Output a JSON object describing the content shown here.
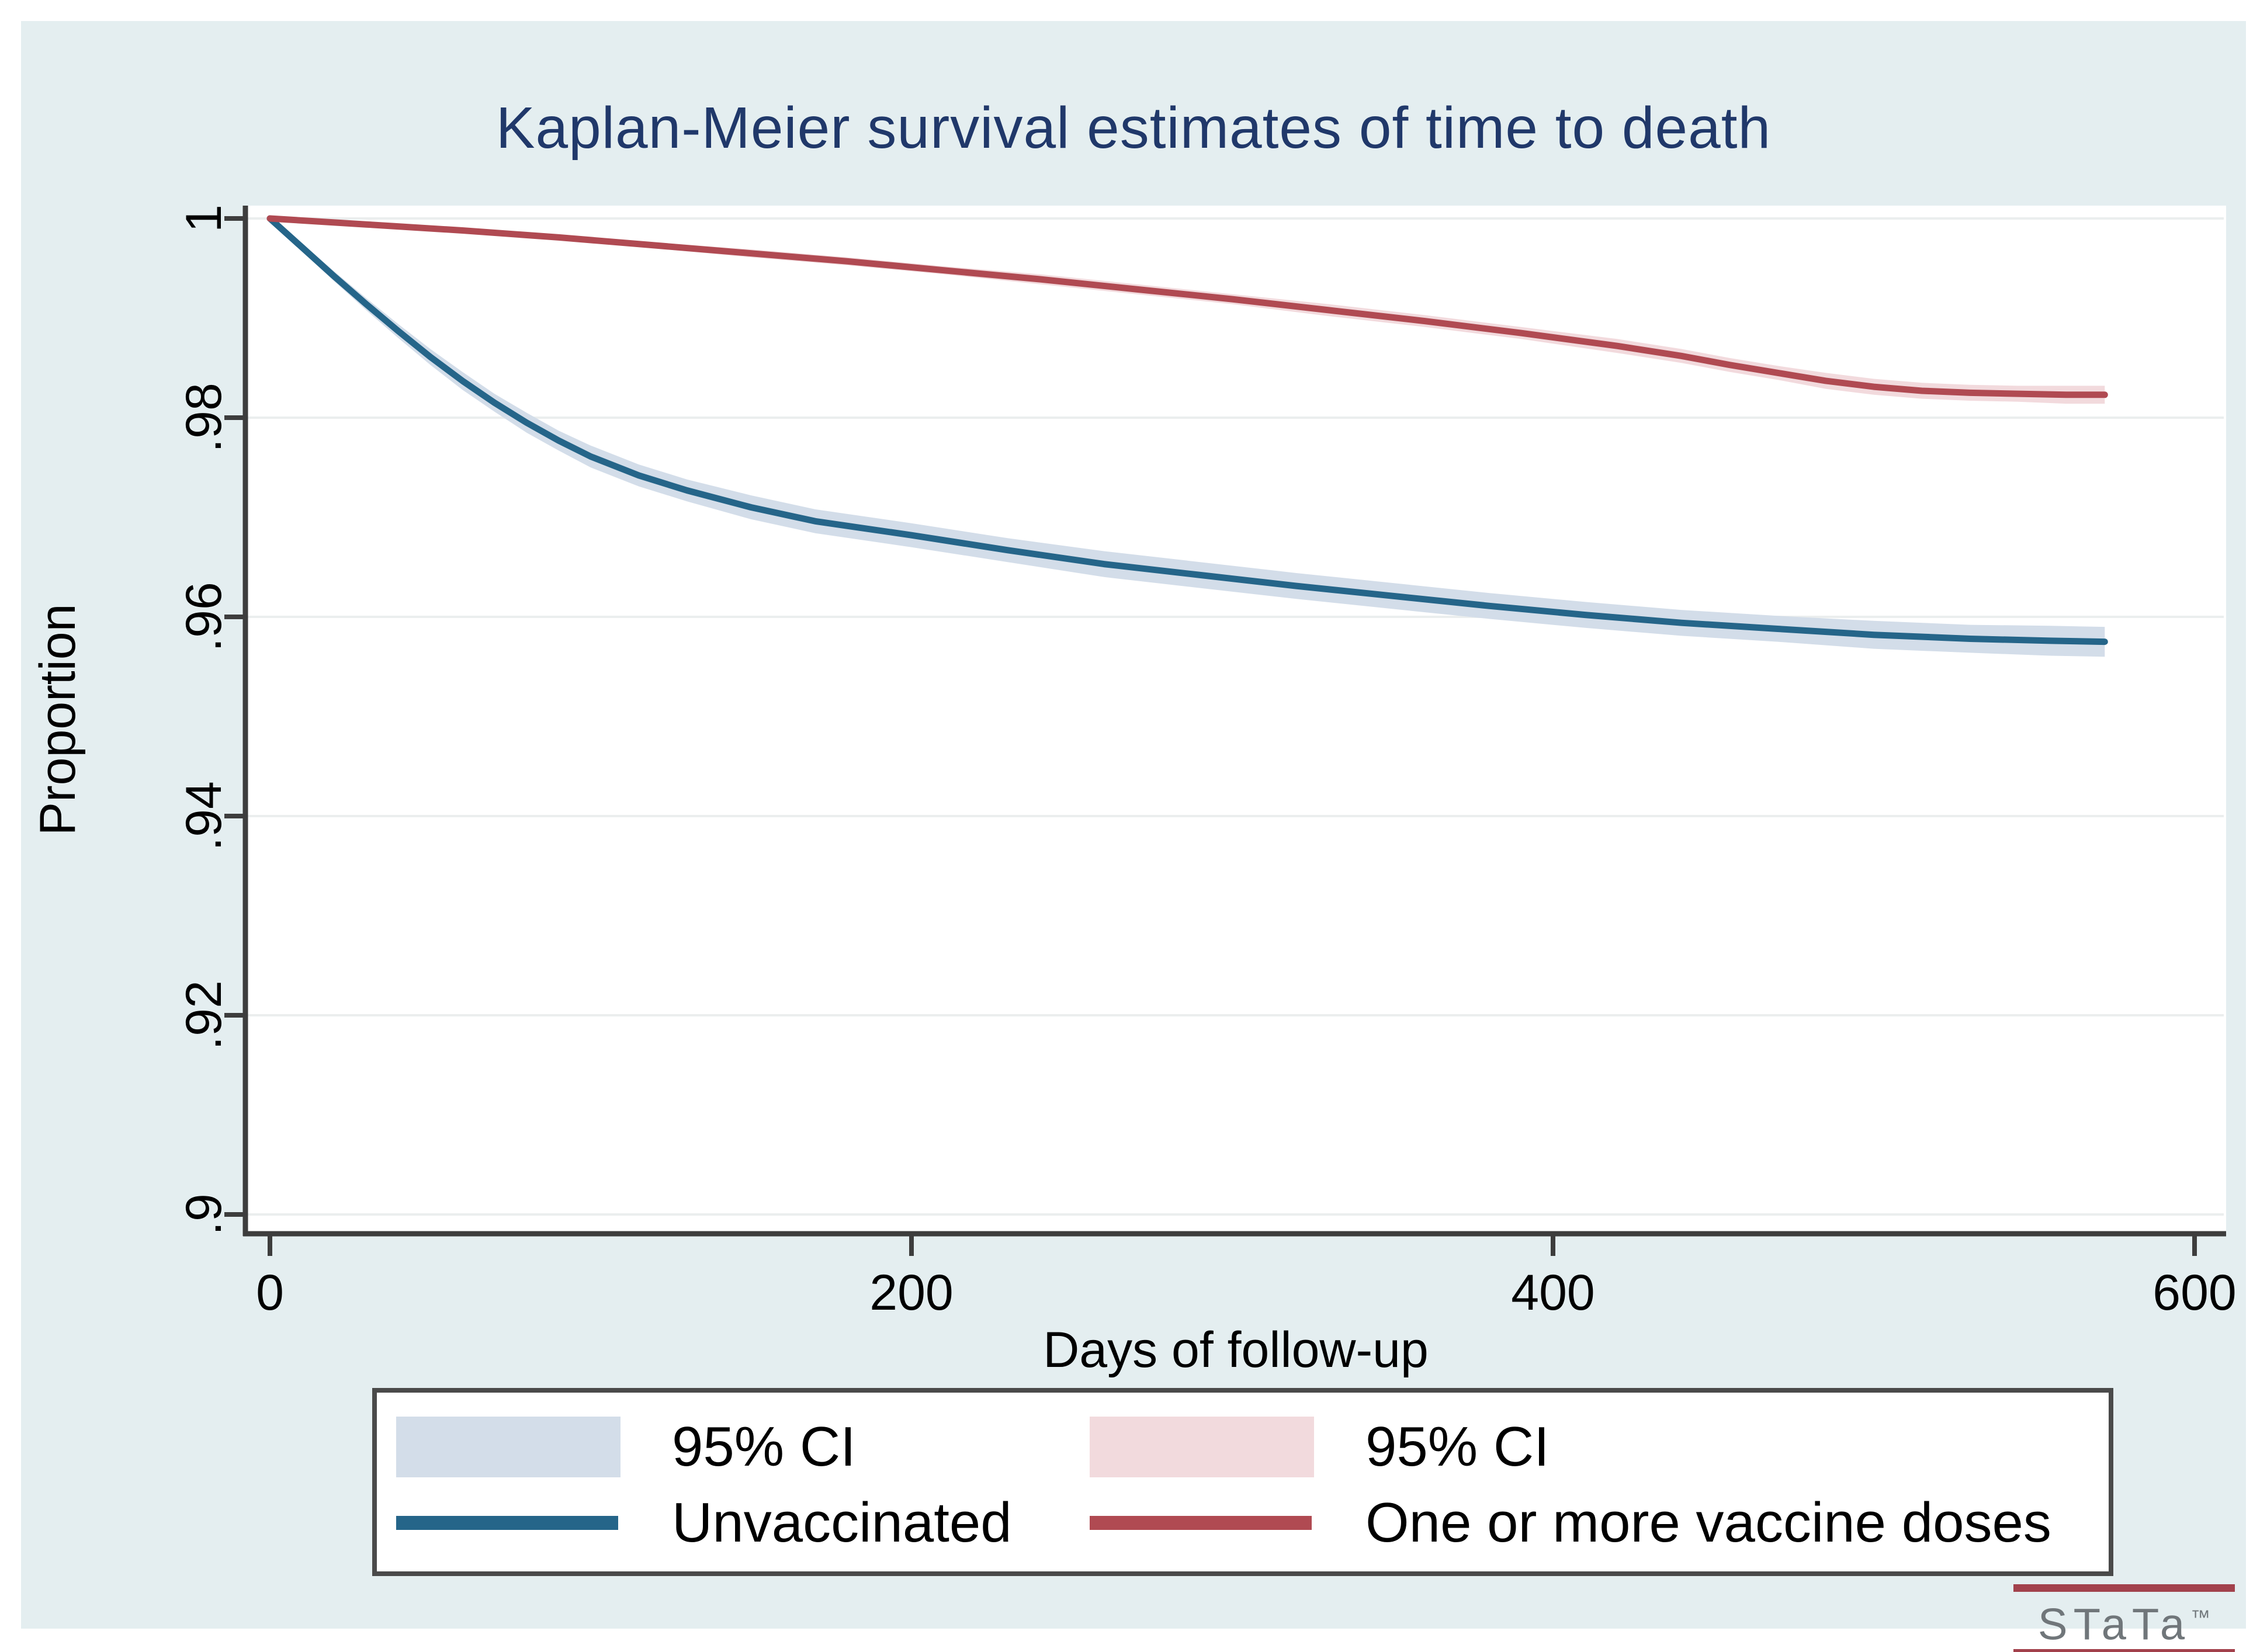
{
  "page": {
    "background_color": "#ffffff",
    "figure_background_color": "#e4eef0",
    "plot_background_color": "#ffffff",
    "axis_color": "#3d3d3d",
    "grid_color": "#ebeeee",
    "title_color": "#20386a"
  },
  "chart_data": {
    "type": "line",
    "subtype": "kaplan-meier-survival",
    "title": "Kaplan-Meier survival estimates of time to death",
    "xlabel": "Days of follow-up",
    "ylabel": "Proportion",
    "xlim": [
      0,
      617
    ],
    "ylim": [
      0.8975,
      1.0032
    ],
    "x_ticks": [
      0,
      200,
      400,
      600
    ],
    "x_tick_labels": [
      "0",
      "200",
      "400",
      "600"
    ],
    "y_ticks": [
      1,
      0.98,
      0.96,
      0.94,
      0.92,
      0.9
    ],
    "y_tick_labels": [
      "1",
      ".98",
      ".96",
      ".94",
      ".92",
      ".9"
    ],
    "grid": "horizontal",
    "legend_position": "bottom",
    "series": [
      {
        "name": "Unvaccinated",
        "ci_label": "95% CI",
        "color": "#256589",
        "ci_color": "#d3dde9",
        "days": [
          0,
          10,
          20,
          30,
          40,
          50,
          60,
          70,
          80,
          90,
          100,
          115,
          130,
          150,
          170,
          200,
          230,
          260,
          290,
          320,
          350,
          380,
          410,
          440,
          470,
          500,
          530,
          555,
          572
        ],
        "values": [
          1,
          0.9971,
          0.9942,
          0.9914,
          0.9887,
          0.9861,
          0.9837,
          0.9815,
          0.9795,
          0.9777,
          0.9761,
          0.9742,
          0.9727,
          0.971,
          0.9696,
          0.9682,
          0.9667,
          0.9653,
          0.9642,
          0.9631,
          0.9621,
          0.9611,
          0.9602,
          0.9594,
          0.9588,
          0.9582,
          0.9578,
          0.9576,
          0.9575
        ],
        "ci_halfwidth": [
          0.0002,
          0.0004,
          0.0005,
          0.0006,
          0.0007,
          0.0008,
          0.0009,
          0.0009,
          0.001,
          0.001,
          0.0011,
          0.0011,
          0.0011,
          0.0012,
          0.0012,
          0.0012,
          0.0012,
          0.0013,
          0.0013,
          0.0013,
          0.0013,
          0.0013,
          0.0013,
          0.0013,
          0.0013,
          0.0014,
          0.0014,
          0.0015,
          0.0015
        ]
      },
      {
        "name": "One or more vaccine doses",
        "ci_label": "95% CI",
        "color": "#b04a52",
        "ci_color": "#f2dadd",
        "days": [
          0,
          30,
          60,
          90,
          120,
          150,
          180,
          210,
          240,
          270,
          300,
          330,
          360,
          390,
          420,
          440,
          455,
          470,
          485,
          500,
          515,
          530,
          545,
          560,
          572
        ],
        "values": [
          1,
          0.9994,
          0.9988,
          0.9981,
          0.9973,
          0.9965,
          0.9957,
          0.9948,
          0.9939,
          0.9929,
          0.9919,
          0.9908,
          0.9897,
          0.9885,
          0.9872,
          0.9862,
          0.9853,
          0.9845,
          0.9837,
          0.9831,
          0.9827,
          0.9825,
          0.9824,
          0.9823,
          0.9823
        ],
        "ci_halfwidth": [
          0.0001,
          0.0002,
          0.0002,
          0.0003,
          0.0003,
          0.0004,
          0.0004,
          0.0004,
          0.0005,
          0.0005,
          0.0005,
          0.0006,
          0.0006,
          0.0006,
          0.0007,
          0.0007,
          0.0007,
          0.0007,
          0.0008,
          0.0008,
          0.0008,
          0.0008,
          0.0008,
          0.0009,
          0.0009
        ]
      }
    ]
  },
  "legend": {
    "entries": [
      {
        "label": "95% CI",
        "swatch": "area",
        "color": "#d3dde9"
      },
      {
        "label": "95% CI",
        "swatch": "area",
        "color": "#f2dadd"
      },
      {
        "label": "Unvaccinated",
        "swatch": "line",
        "color": "#256589"
      },
      {
        "label": "One or more vaccine doses",
        "swatch": "line",
        "color": "#b04a52"
      }
    ]
  },
  "branding": {
    "logo_text": "STaTa",
    "trademark": "™",
    "bar_color": "#a2414c",
    "text_color": "#70767a"
  }
}
